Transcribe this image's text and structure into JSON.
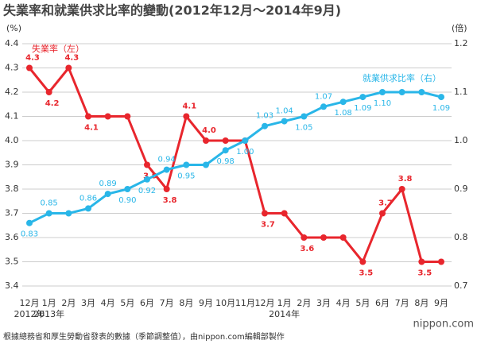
{
  "chart_data": {
    "type": "line",
    "title": "失業率和就業供求比率的變動(2012年12月～2014年9月)",
    "ylabel": "(%)",
    "y2label": "(倍)",
    "categories": [
      "12月",
      "1月",
      "2月",
      "3月",
      "4月",
      "5月",
      "6月",
      "7月",
      "8月",
      "9月",
      "10月",
      "11月",
      "12月",
      "1月",
      "2月",
      "3月",
      "4月",
      "5月",
      "6月",
      "7月",
      "8月",
      "9月"
    ],
    "category_years": [
      "2012年",
      "2013年",
      null,
      null,
      null,
      null,
      null,
      null,
      null,
      null,
      null,
      null,
      null,
      "2014年",
      null,
      null,
      null,
      null,
      null,
      null,
      null,
      null
    ],
    "ylim": [
      3.4,
      4.4
    ],
    "yticks": [
      3.4,
      3.5,
      3.6,
      3.7,
      3.8,
      3.9,
      {
        "value": 4,
        "label": "4.0"
      },
      4.1,
      4.2,
      4.3,
      4.4
    ],
    "y2lim": [
      0.7,
      1.2
    ],
    "y2ticks": [
      0.7,
      0.8,
      0.9,
      {
        "value": 1,
        "label": "1.0"
      },
      1.1,
      1.2
    ],
    "grid": true,
    "series": [
      {
        "name": "失業率（左）",
        "color": "#e8262d",
        "values": [
          4.3,
          4.2,
          4.3,
          4.1,
          4.1,
          4.1,
          3.9,
          3.8,
          4.1,
          4.0,
          4.0,
          4.0,
          3.7,
          3.7,
          3.6,
          3.6,
          3.6,
          3.5,
          3.7,
          3.8,
          3.5,
          3.5
        ],
        "value_labels": [
          "4.3",
          "4.2",
          "4.3",
          "4.1",
          null,
          null,
          "3.9",
          "3.8",
          "4.1",
          "4.0",
          null,
          null,
          "3.7",
          null,
          "3.6",
          null,
          null,
          "3.5",
          "3.7",
          "3.8",
          "3.5",
          null
        ]
      },
      {
        "name": "就業供求比率（右）",
        "color": "#29b6e8",
        "axis": "y2",
        "values": [
          0.83,
          0.85,
          0.85,
          0.86,
          0.89,
          0.9,
          0.92,
          0.94,
          0.95,
          0.95,
          0.98,
          1.0,
          1.03,
          1.04,
          1.05,
          1.07,
          1.08,
          1.09,
          1.1,
          1.1,
          1.1,
          1.09
        ],
        "value_labels": [
          "0.83",
          "0.85",
          null,
          "0.86",
          "0.89",
          "0.90",
          "0.92",
          "0.94",
          "0.95",
          null,
          "0.98",
          "1.00",
          "1.03",
          "1.04",
          "1.05",
          "1.07",
          "1.08",
          "1.09",
          "1.10",
          null,
          null,
          "1.09"
        ]
      }
    ],
    "footnote": "根據總務省和厚生勞動省發表的數據（季節調整值），由nippon.com編輯部製作",
    "source_logo": "nippon.com"
  }
}
